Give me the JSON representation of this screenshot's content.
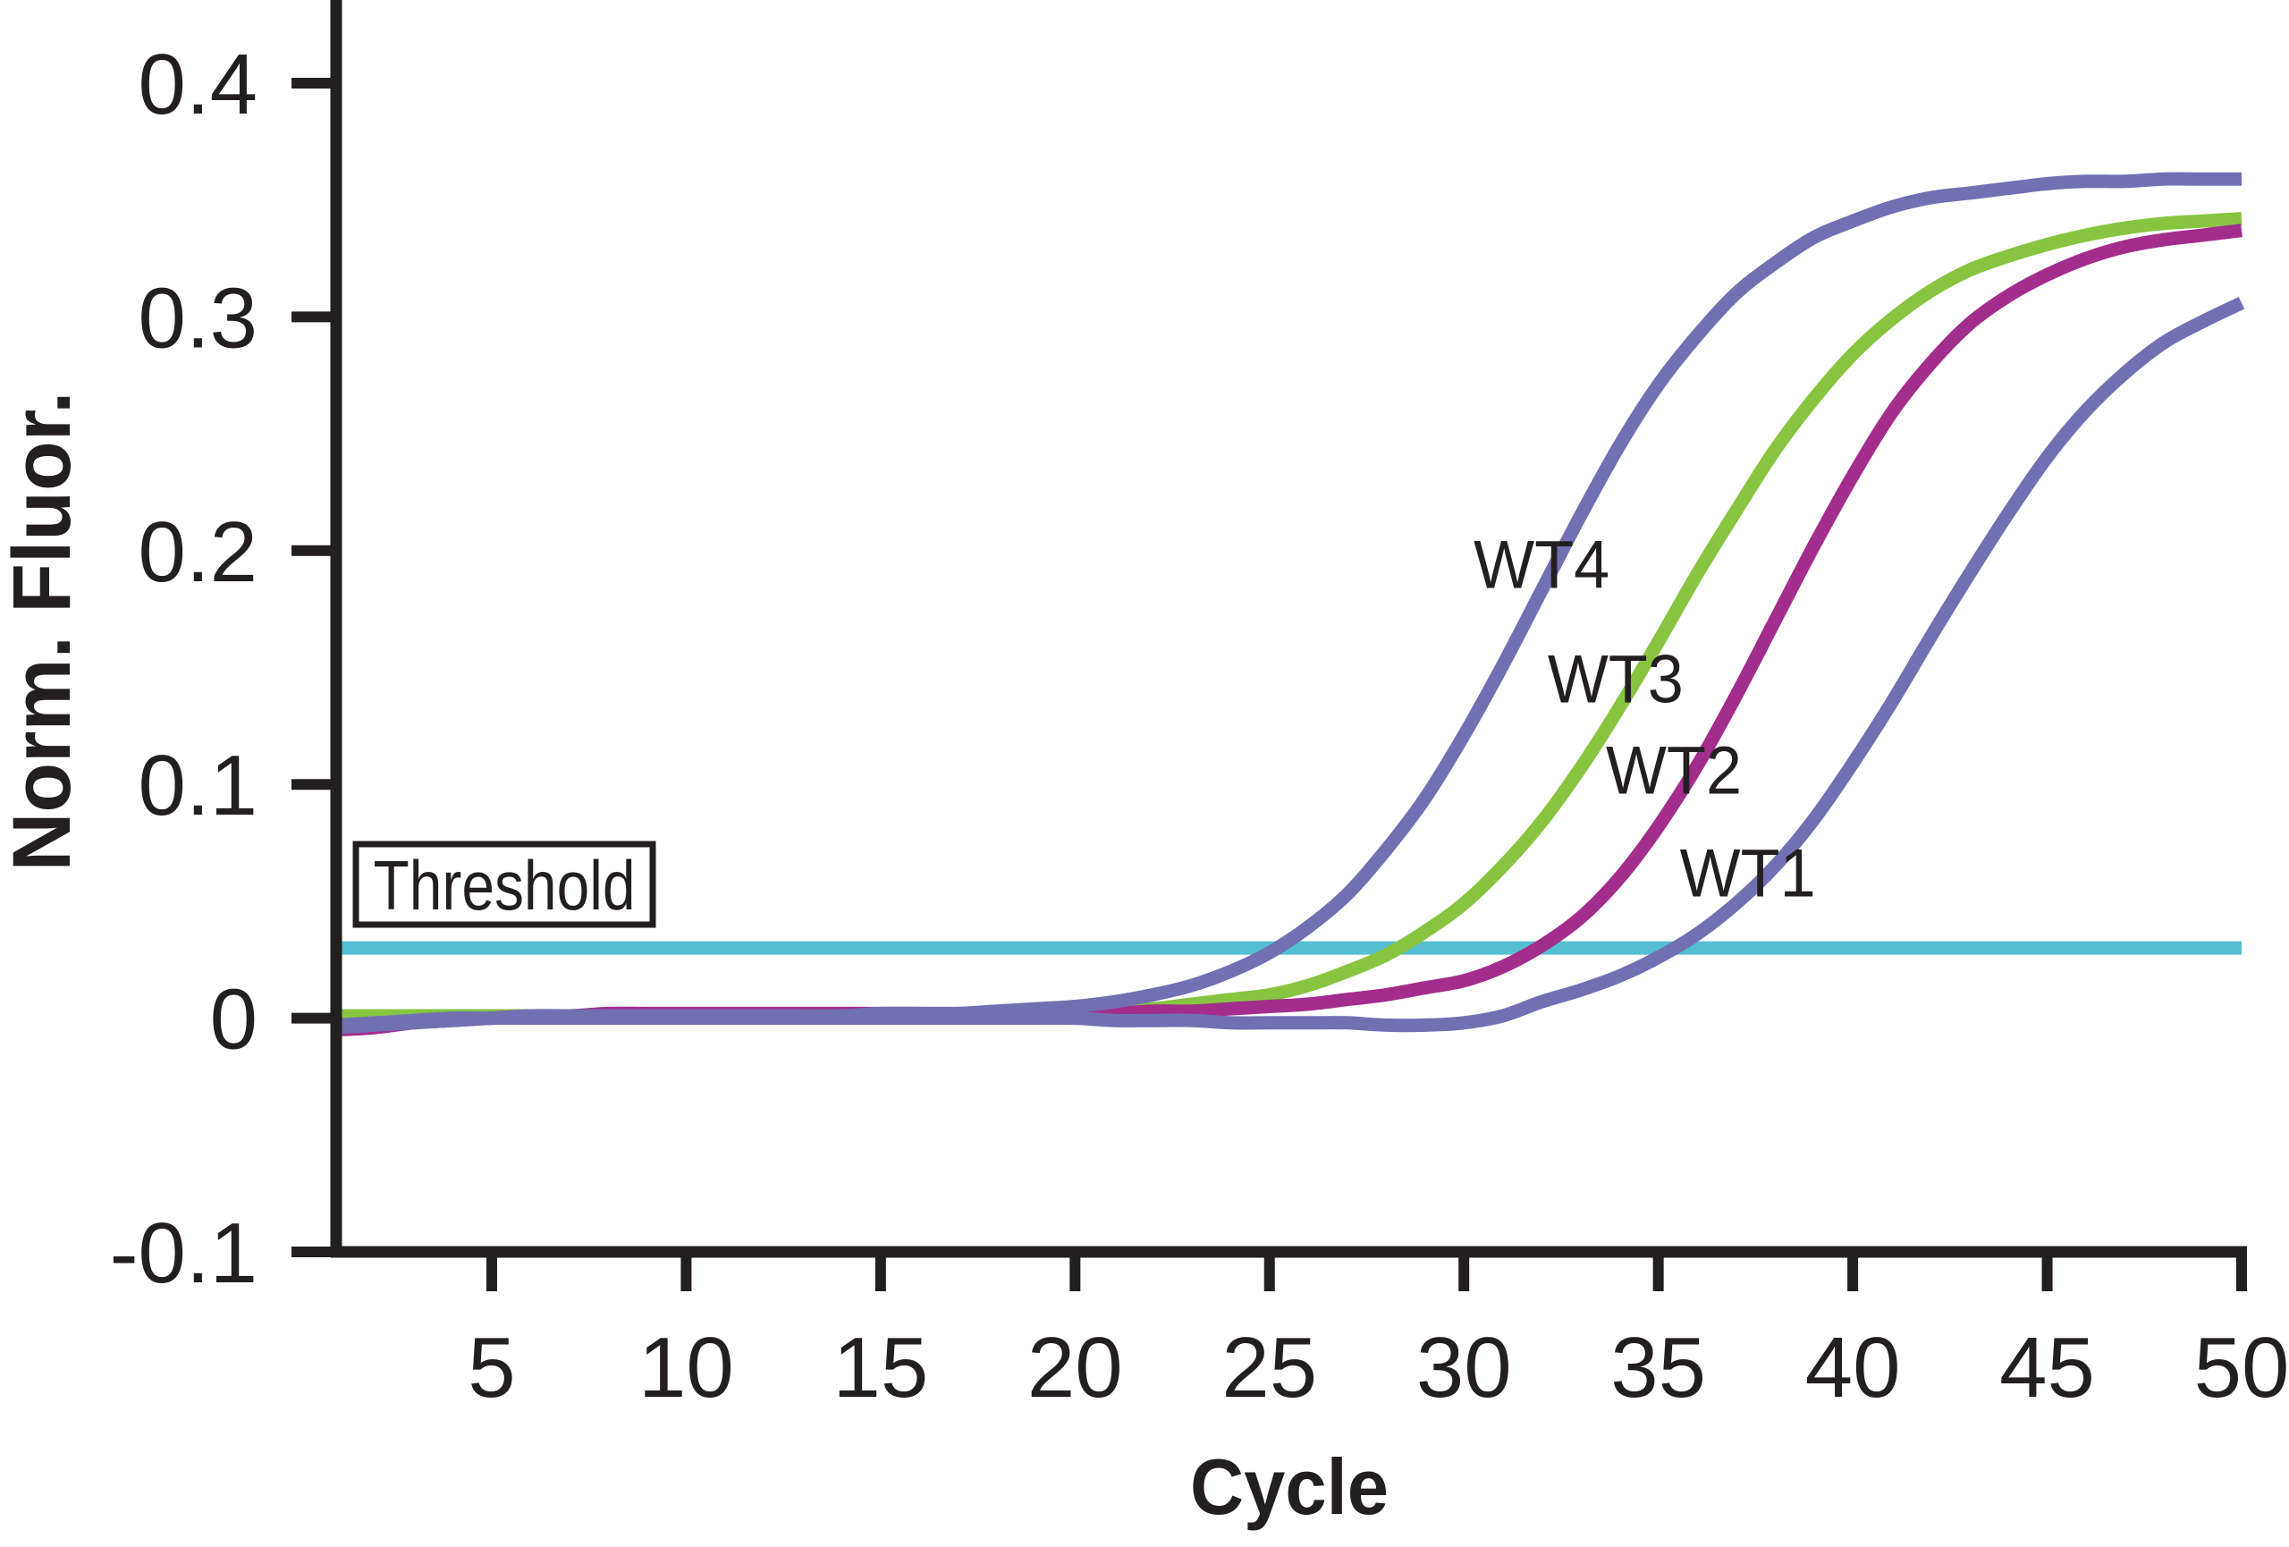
{
  "figure": {
    "background": "#ffffff",
    "ink_color": "#231f20"
  },
  "chart_data": {
    "type": "line",
    "title": "",
    "xlabel": "Cycle",
    "ylabel": "Norm. Fluor.",
    "xlim": [
      1,
      50
    ],
    "ylim": [
      -0.1,
      0.435
    ],
    "grid": false,
    "legend_position": "inline-curve-labels",
    "x_ticks": [
      {
        "value": 5,
        "label": "5"
      },
      {
        "value": 10,
        "label": "10"
      },
      {
        "value": 15,
        "label": "15"
      },
      {
        "value": 20,
        "label": "20"
      },
      {
        "value": 25,
        "label": "25"
      },
      {
        "value": 30,
        "label": "30"
      },
      {
        "value": 35,
        "label": "35"
      },
      {
        "value": 40,
        "label": "40"
      },
      {
        "value": 45,
        "label": "45"
      },
      {
        "value": 50,
        "label": "50"
      }
    ],
    "y_ticks": [
      {
        "value": 0.4,
        "label": "0.4"
      },
      {
        "value": 0.3,
        "label": "0.3"
      },
      {
        "value": 0.2,
        "label": "0.2"
      },
      {
        "value": 0.1,
        "label": "0.1"
      },
      {
        "value": 0,
        "label": "0"
      },
      {
        "value": -0.1,
        "label": "-0.1"
      }
    ],
    "threshold": {
      "label": "Threshold",
      "value": 0.03,
      "color": "#54bfd2"
    },
    "x": [
      1,
      2,
      3,
      4,
      5,
      6,
      7,
      8,
      9,
      10,
      11,
      12,
      13,
      14,
      15,
      16,
      17,
      18,
      19,
      20,
      21,
      22,
      23,
      24,
      25,
      26,
      27,
      28,
      29,
      30,
      31,
      32,
      33,
      34,
      35,
      36,
      37,
      38,
      39,
      40,
      41,
      42,
      43,
      44,
      45,
      46,
      47,
      48,
      49,
      50
    ],
    "series": [
      {
        "name": "WT4",
        "color": "#7170b3",
        "values": [
          -0.003,
          -0.002,
          -0.001,
          0,
          0,
          0.001,
          0.001,
          0.001,
          0.001,
          0.001,
          0.001,
          0.001,
          0.001,
          0.001,
          0.002,
          0.002,
          0.002,
          0.003,
          0.004,
          0.005,
          0.007,
          0.01,
          0.014,
          0.02,
          0.028,
          0.039,
          0.053,
          0.072,
          0.094,
          0.121,
          0.151,
          0.183,
          0.215,
          0.245,
          0.271,
          0.292,
          0.31,
          0.323,
          0.334,
          0.341,
          0.347,
          0.351,
          0.353,
          0.355,
          0.357,
          0.358,
          0.358,
          0.359,
          0.359,
          0.359
        ]
      },
      {
        "name": "WT3",
        "color": "#87c540",
        "values": [
          0.001,
          0.001,
          0.001,
          0.001,
          0.001,
          0.001,
          0.001,
          0.001,
          0.001,
          0.001,
          0.001,
          0.001,
          0.001,
          0.001,
          0.001,
          0.001,
          0.001,
          0.002,
          0.002,
          0.002,
          0.003,
          0.004,
          0.006,
          0.008,
          0.01,
          0.014,
          0.02,
          0.027,
          0.037,
          0.049,
          0.065,
          0.084,
          0.107,
          0.133,
          0.161,
          0.19,
          0.217,
          0.243,
          0.265,
          0.284,
          0.299,
          0.311,
          0.32,
          0.326,
          0.331,
          0.335,
          0.338,
          0.34,
          0.341,
          0.342
        ]
      },
      {
        "name": "WT2",
        "color": "#a32d8c",
        "values": [
          -0.005,
          -0.004,
          -0.002,
          -0.001,
          0,
          0.001,
          0.001,
          0.002,
          0.002,
          0.002,
          0.002,
          0.002,
          0.002,
          0.002,
          0.002,
          0.002,
          0.002,
          0.002,
          0.002,
          0.002,
          0.002,
          0.003,
          0.003,
          0.004,
          0.005,
          0.006,
          0.008,
          0.01,
          0.013,
          0.016,
          0.022,
          0.031,
          0.043,
          0.06,
          0.082,
          0.108,
          0.138,
          0.17,
          0.202,
          0.232,
          0.259,
          0.28,
          0.297,
          0.309,
          0.318,
          0.325,
          0.33,
          0.333,
          0.335,
          0.337
        ]
      },
      {
        "name": "WT1",
        "color": "#7170b3",
        "values": [
          -0.004,
          -0.003,
          -0.002,
          -0.001,
          0,
          0,
          0,
          0,
          0,
          0,
          0,
          0,
          0,
          0,
          0,
          0,
          0,
          0,
          0,
          0,
          -0.001,
          -0.001,
          -0.001,
          -0.002,
          -0.002,
          -0.002,
          -0.002,
          -0.003,
          -0.003,
          -0.002,
          0.001,
          0.007,
          0.012,
          0.018,
          0.026,
          0.036,
          0.049,
          0.065,
          0.085,
          0.109,
          0.135,
          0.163,
          0.19,
          0.216,
          0.24,
          0.26,
          0.276,
          0.289,
          0.298,
          0.306
        ]
      }
    ],
    "curve_labels": [
      {
        "text": "WT4",
        "x": 32.0,
        "y": 0.184
      },
      {
        "text": "WT3",
        "x": 33.9,
        "y": 0.135
      },
      {
        "text": "WT2",
        "x": 35.4,
        "y": 0.096
      },
      {
        "text": "WT1",
        "x": 37.3,
        "y": 0.052
      }
    ]
  }
}
